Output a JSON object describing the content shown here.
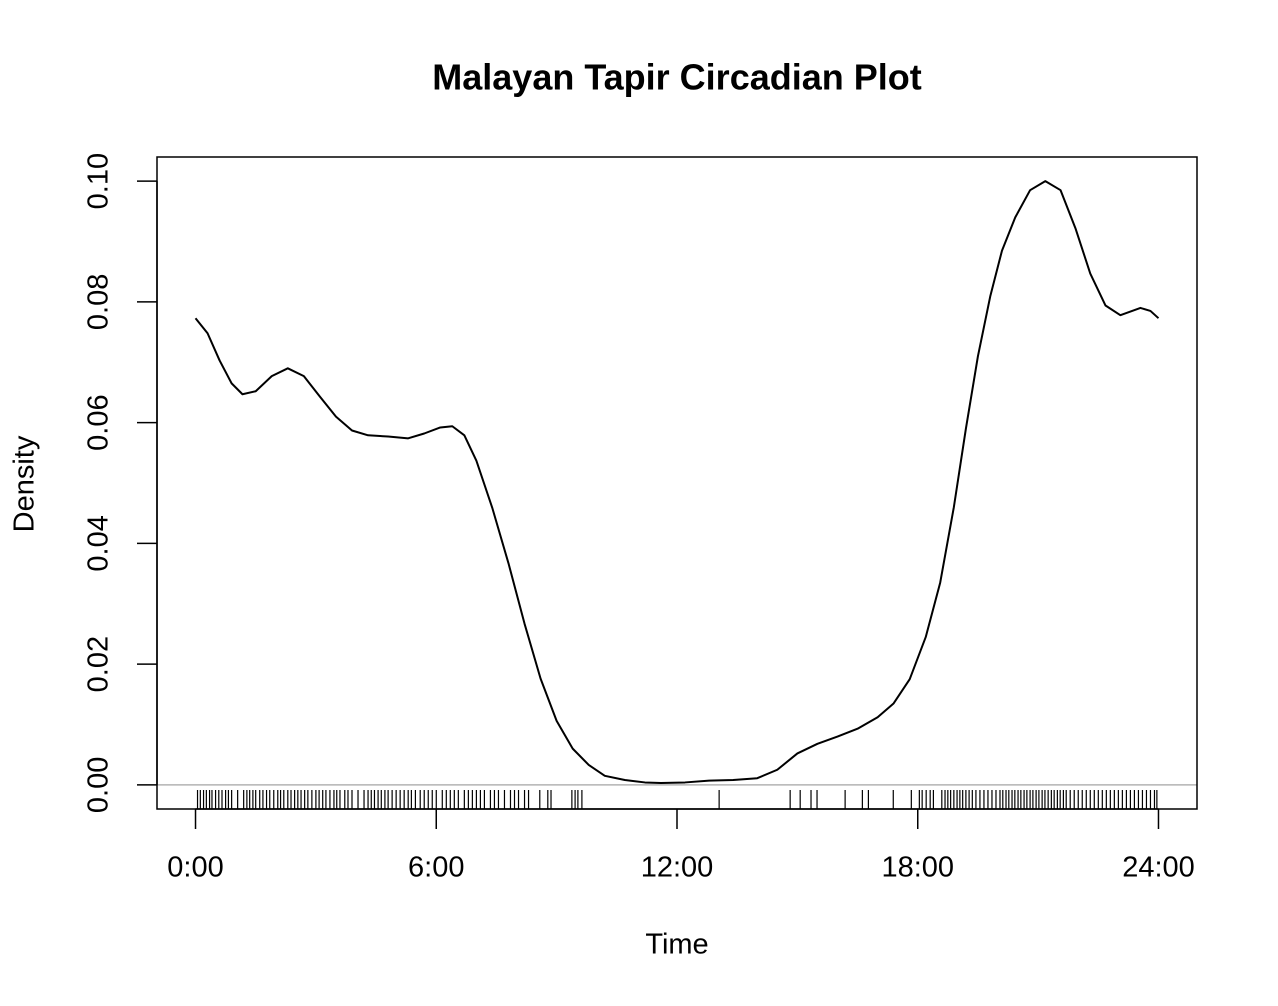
{
  "chart_data": {
    "type": "line",
    "title": "Malayan Tapir Circadian Plot",
    "x_label": "Time",
    "y_label": "Density",
    "color": "#000000",
    "x": [
      0,
      0.3,
      0.6,
      0.9,
      1.17,
      1.5,
      1.9,
      2.3,
      2.7,
      3.1,
      3.5,
      3.9,
      4.3,
      4.8,
      5.3,
      5.7,
      6.1,
      6.4,
      6.7,
      7.0,
      7.4,
      7.8,
      8.2,
      8.6,
      9.0,
      9.4,
      9.8,
      10.2,
      10.7,
      11.2,
      11.6,
      12.2,
      12.8,
      13.4,
      14.0,
      14.5,
      15.0,
      15.5,
      16.0,
      16.5,
      17.0,
      17.4,
      17.8,
      18.2,
      18.56,
      18.9,
      19.2,
      19.5,
      19.81,
      20.1,
      20.43,
      20.8,
      21.18,
      21.56,
      21.93,
      22.3,
      22.68,
      23.05,
      23.55,
      23.8,
      24
    ],
    "values": [
      0.0773,
      0.0748,
      0.0703,
      0.0665,
      0.0647,
      0.0652,
      0.0677,
      0.069,
      0.0677,
      0.0643,
      0.061,
      0.0587,
      0.0579,
      0.0577,
      0.0574,
      0.0582,
      0.0592,
      0.0594,
      0.0579,
      0.0537,
      0.0458,
      0.0367,
      0.0267,
      0.0176,
      0.0106,
      0.006,
      0.0033,
      0.0015,
      0.0008,
      0.0004,
      0.0003,
      0.0004,
      0.0007,
      0.0008,
      0.0011,
      0.0025,
      0.0052,
      0.0068,
      0.008,
      0.0093,
      0.0112,
      0.0135,
      0.0175,
      0.0245,
      0.0335,
      0.046,
      0.059,
      0.071,
      0.081,
      0.0885,
      0.094,
      0.0985,
      0.1,
      0.0985,
      0.0922,
      0.0847,
      0.0794,
      0.0778,
      0.079,
      0.0785,
      0.0773
    ],
    "rug": [
      0.05,
      0.12,
      0.2,
      0.27,
      0.35,
      0.41,
      0.5,
      0.58,
      0.66,
      0.75,
      0.82,
      0.9,
      1.05,
      1.2,
      1.28,
      1.35,
      1.43,
      1.5,
      1.6,
      1.68,
      1.77,
      1.85,
      1.95,
      2.05,
      2.12,
      2.2,
      2.3,
      2.38,
      2.47,
      2.55,
      2.63,
      2.72,
      2.8,
      2.9,
      3.0,
      3.08,
      3.17,
      3.25,
      3.35,
      3.45,
      3.52,
      3.6,
      3.72,
      3.8,
      3.9,
      4.05,
      4.2,
      4.3,
      4.38,
      4.46,
      4.55,
      4.63,
      4.72,
      4.8,
      4.9,
      5.0,
      5.1,
      5.2,
      5.3,
      5.38,
      5.48,
      5.6,
      5.7,
      5.8,
      5.9,
      6.0,
      6.15,
      6.25,
      6.35,
      6.45,
      6.55,
      6.7,
      6.8,
      6.9,
      7.0,
      7.1,
      7.2,
      7.35,
      7.45,
      7.55,
      7.7,
      7.85,
      7.95,
      8.05,
      8.2,
      8.3,
      8.58,
      8.78,
      8.86,
      9.38,
      9.46,
      9.53,
      9.63,
      13.05,
      14.82,
      15.07,
      15.34,
      15.49,
      16.19,
      16.62,
      16.77,
      17.39,
      17.84,
      18.04,
      18.11,
      18.21,
      18.31,
      18.39,
      18.6,
      18.68,
      18.75,
      18.82,
      18.9,
      18.98,
      19.05,
      19.12,
      19.2,
      19.28,
      19.36,
      19.45,
      19.55,
      19.65,
      19.75,
      19.85,
      19.95,
      20.05,
      20.12,
      20.2,
      20.27,
      20.35,
      20.42,
      20.5,
      20.57,
      20.65,
      20.72,
      20.8,
      20.87,
      20.95,
      21.02,
      21.1,
      21.17,
      21.25,
      21.33,
      21.4,
      21.48,
      21.55,
      21.63,
      21.7,
      21.8,
      21.9,
      22.0,
      22.1,
      22.2,
      22.3,
      22.4,
      22.5,
      22.6,
      22.7,
      22.8,
      22.9,
      23.0,
      23.1,
      23.2,
      23.3,
      23.4,
      23.5,
      23.6,
      23.7,
      23.8,
      23.9,
      23.96
    ],
    "xlim": [
      -0.96,
      24.96
    ],
    "ylim": [
      -0.004,
      0.104
    ],
    "xticks": [
      {
        "value": 0,
        "label": "0:00"
      },
      {
        "value": 6,
        "label": "6:00"
      },
      {
        "value": 12,
        "label": "12:00"
      },
      {
        "value": 18,
        "label": "18:00"
      },
      {
        "value": 24,
        "label": "24:00"
      }
    ],
    "yticks": [
      {
        "value": 0,
        "label": "0.00"
      },
      {
        "value": 0.02,
        "label": "0.02"
      },
      {
        "value": 0.04,
        "label": "0.04"
      },
      {
        "value": 0.06,
        "label": "0.06"
      },
      {
        "value": 0.08,
        "label": "0.08"
      },
      {
        "value": 0.1,
        "label": "0.10"
      }
    ],
    "grid": false
  }
}
